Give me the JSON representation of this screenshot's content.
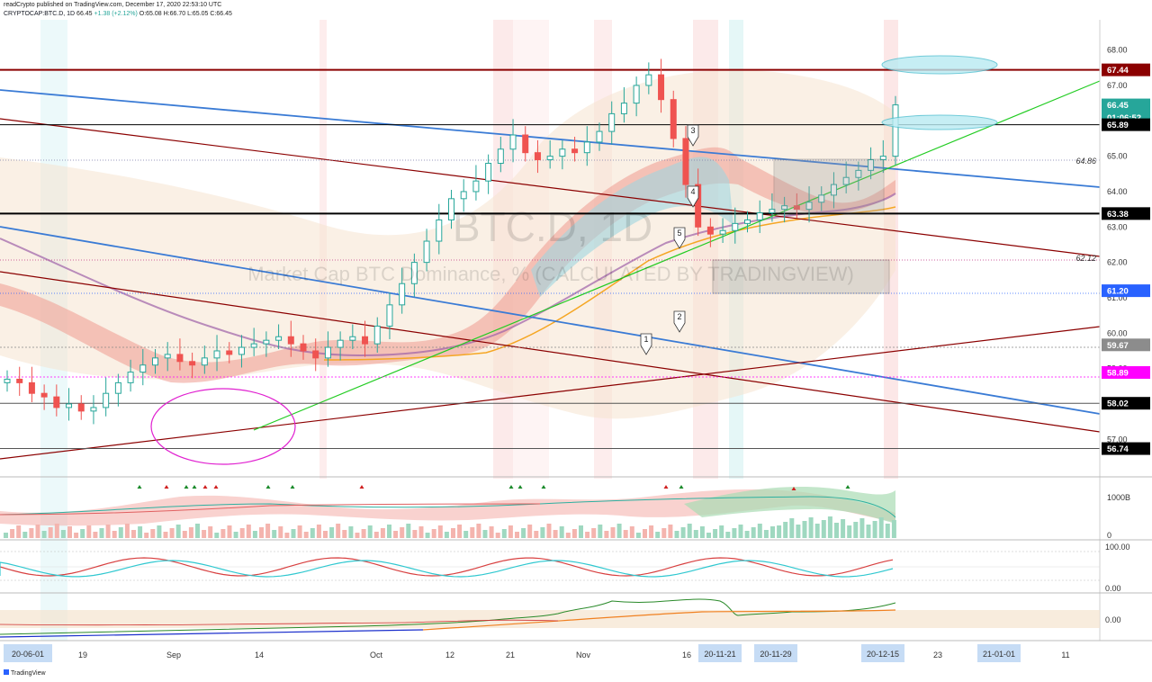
{
  "header": {
    "publisher": "readCrypto published on TradingView.com, December 17, 2020 22:53:10 UTC",
    "symbol": "CRYPTOCAP:BTC.D, 1D",
    "last": "66.45",
    "change": "+1.38 (+2.12%)",
    "ohlc": "O:65.08 H:66.70 L:65.05 C:66.45"
  },
  "watermark": {
    "ticker": "BTC.D, 1D",
    "description": "Market Cap BTC Dominance, % (CALCULATED BY TRADINGVIEW)"
  },
  "footer": {
    "brand": "TradingView"
  },
  "colors": {
    "up": "#26a69a",
    "down": "#ef5350",
    "resistance": "#8b0000",
    "support": "#000000",
    "trend_blue": "#3a7bd5",
    "trend_green": "#22cc22",
    "ellipse_magenta": "#e020d0",
    "cyan_ellipse": "#7fd8e6"
  },
  "chart_data": {
    "type": "line",
    "title": "",
    "price_axis": {
      "range": [
        56.5,
        68.6
      ],
      "ticks": [
        "68.00",
        "67.00",
        "66.00",
        "65.00",
        "64.00",
        "63.00",
        "62.00",
        "61.00",
        "60.00",
        "59.00",
        "58.00",
        "57.00"
      ]
    },
    "time_axis": {
      "ticks": [
        "19",
        "Sep",
        "14",
        "Oct",
        "12",
        "21",
        "Nov",
        "16",
        "23",
        "11"
      ],
      "highlighted": [
        "20-06-01",
        "20-11-21",
        "20-11-29",
        "20-12-15",
        "21-01-01"
      ]
    },
    "price_labels": [
      {
        "text": "67.44",
        "value": 67.44,
        "bg": "#8b0000",
        "fg": "#ffffff"
      },
      {
        "text": "66.45",
        "value": 66.45,
        "bg": "#26a69a",
        "fg": "#ffffff"
      },
      {
        "text": "01:06:52",
        "value": 66.1,
        "bg": "#26a69a",
        "fg": "#ffffff"
      },
      {
        "text": "65.89",
        "value": 65.89,
        "bg": "#000000",
        "fg": "#ffffff"
      },
      {
        "text": "63.38",
        "value": 63.38,
        "bg": "#000000",
        "fg": "#ffffff"
      },
      {
        "text": "61.20",
        "value": 61.2,
        "bg": "#2962ff",
        "fg": "#ffffff"
      },
      {
        "text": "59.67",
        "value": 59.67,
        "bg": "#8c8c8c",
        "fg": "#ffffff"
      },
      {
        "text": "58.89",
        "value": 58.89,
        "bg": "#ff00ff",
        "fg": "#ffffff"
      },
      {
        "text": "58.02",
        "value": 58.02,
        "bg": "#000000",
        "fg": "#ffffff"
      },
      {
        "text": "56.74",
        "value": 56.74,
        "bg": "#000000",
        "fg": "#ffffff"
      }
    ],
    "plain_labels": [
      {
        "text": "64.86",
        "value": 64.86
      },
      {
        "text": "62.12",
        "value": 62.12
      }
    ],
    "horizontal_levels": [
      {
        "value": 67.44,
        "color": "#8b0000",
        "width": 2
      },
      {
        "value": 65.89,
        "color": "#000000",
        "width": 1
      },
      {
        "value": 63.38,
        "color": "#000000",
        "width": 2
      },
      {
        "value": 58.02,
        "color": "#555555",
        "width": 1
      },
      {
        "value": 56.74,
        "color": "#555555",
        "width": 1
      }
    ],
    "wave_labels": [
      "1",
      "2",
      "3",
      "4",
      "5"
    ],
    "close_series": [
      58.7,
      58.6,
      58.3,
      58.2,
      57.9,
      58.0,
      57.8,
      57.9,
      58.3,
      58.6,
      58.9,
      59.1,
      59.3,
      59.4,
      59.2,
      59.1,
      59.3,
      59.5,
      59.4,
      59.6,
      59.7,
      59.8,
      59.9,
      59.7,
      59.5,
      59.3,
      59.6,
      59.8,
      59.9,
      59.7,
      60.2,
      60.8,
      61.4,
      62.0,
      62.6,
      63.2,
      63.8,
      64.0,
      64.3,
      64.8,
      65.2,
      65.6,
      65.1,
      64.9,
      65.0,
      65.2,
      65.1,
      65.4,
      65.7,
      66.2,
      66.5,
      67.0,
      67.3,
      66.6,
      65.5,
      64.2,
      63.0,
      62.8,
      62.9,
      63.1,
      63.2,
      63.4,
      63.5,
      63.6,
      63.5,
      63.7,
      63.9,
      64.2,
      64.4,
      64.6,
      64.9,
      65.0,
      66.45
    ],
    "panels": {
      "volume_label": "1000B",
      "volume_zero": "0",
      "osc_top": "100.00",
      "osc_bottom": "0.00",
      "lower_zero": "0.00"
    }
  }
}
